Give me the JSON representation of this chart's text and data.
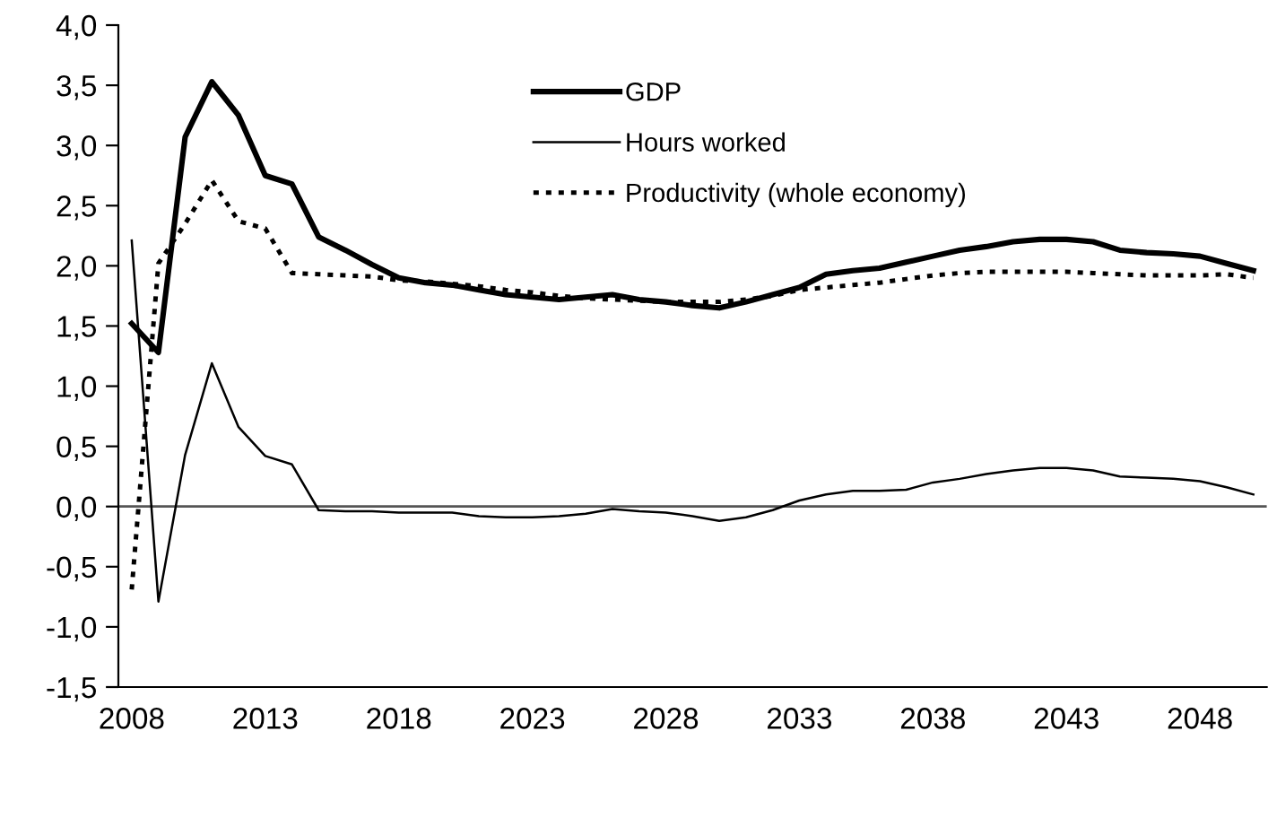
{
  "chart_data": {
    "type": "line",
    "x": [
      2008,
      2009,
      2010,
      2011,
      2012,
      2013,
      2014,
      2015,
      2016,
      2017,
      2018,
      2019,
      2020,
      2021,
      2022,
      2023,
      2024,
      2025,
      2026,
      2027,
      2028,
      2029,
      2030,
      2031,
      2032,
      2033,
      2034,
      2035,
      2036,
      2037,
      2038,
      2039,
      2040,
      2041,
      2042,
      2043,
      2044,
      2045,
      2046,
      2047,
      2048,
      2049,
      2050
    ],
    "series": [
      {
        "name": "GDP",
        "color": "#000000",
        "line_style": "solid",
        "values": [
          1.52,
          1.28,
          3.07,
          3.53,
          3.25,
          2.75,
          2.68,
          2.24,
          2.13,
          2.01,
          1.9,
          1.86,
          1.84,
          1.8,
          1.76,
          1.74,
          1.72,
          1.74,
          1.76,
          1.72,
          1.7,
          1.67,
          1.65,
          1.7,
          1.76,
          1.82,
          1.93,
          1.96,
          1.98,
          2.03,
          2.08,
          2.13,
          2.16,
          2.2,
          2.22,
          2.22,
          2.2,
          2.13,
          2.11,
          2.1,
          2.08,
          2.02,
          1.96
        ]
      },
      {
        "name": "Hours worked",
        "color": "#000000",
        "line_style": "solid",
        "values": [
          2.21,
          -0.79,
          0.43,
          1.19,
          0.66,
          0.42,
          0.35,
          -0.03,
          -0.04,
          -0.04,
          -0.05,
          -0.05,
          -0.05,
          -0.08,
          -0.09,
          -0.09,
          -0.08,
          -0.06,
          -0.02,
          -0.04,
          -0.05,
          -0.08,
          -0.12,
          -0.09,
          -0.03,
          0.05,
          0.1,
          0.13,
          0.13,
          0.14,
          0.2,
          0.23,
          0.27,
          0.3,
          0.32,
          0.32,
          0.3,
          0.25,
          0.24,
          0.23,
          0.21,
          0.16,
          0.1
        ]
      },
      {
        "name": "Productivity (whole economy)",
        "color": "#000000",
        "line_style": "dotted",
        "values": [
          -0.69,
          2.02,
          2.35,
          2.71,
          2.37,
          2.31,
          1.94,
          1.93,
          1.92,
          1.91,
          1.88,
          1.87,
          1.85,
          1.83,
          1.8,
          1.78,
          1.75,
          1.73,
          1.72,
          1.71,
          1.7,
          1.7,
          1.7,
          1.72,
          1.75,
          1.8,
          1.82,
          1.84,
          1.86,
          1.89,
          1.92,
          1.94,
          1.95,
          1.95,
          1.95,
          1.95,
          1.94,
          1.93,
          1.92,
          1.92,
          1.92,
          1.93,
          1.9
        ]
      }
    ],
    "xlim": [
      2007.5,
      2050.5
    ],
    "xticks": [
      2008,
      2013,
      2018,
      2023,
      2028,
      2033,
      2038,
      2043,
      2048
    ],
    "ylim": [
      -1.5,
      4.0
    ],
    "yticks": [
      {
        "value": -1.5,
        "label": "-1,5"
      },
      {
        "value": -1.0,
        "label": "-1,0"
      },
      {
        "value": -0.5,
        "label": "-0,5"
      },
      {
        "value": 0,
        "label": "0,0"
      },
      {
        "value": 0.5,
        "label": "0,5"
      },
      {
        "value": 1.0,
        "label": "1,0"
      },
      {
        "value": 1.5,
        "label": "1,5"
      },
      {
        "value": 2.0,
        "label": "2,0"
      },
      {
        "value": 2.5,
        "label": "2,5"
      },
      {
        "value": 3.0,
        "label": "3,0"
      },
      {
        "value": 3.5,
        "label": "3,5"
      },
      {
        "value": 4.0,
        "label": "4,0"
      }
    ],
    "ref_lines": [
      {
        "axis": "y",
        "value": 0,
        "color": "#555555"
      }
    ],
    "legend": "top",
    "grid": false,
    "marker": "none"
  }
}
